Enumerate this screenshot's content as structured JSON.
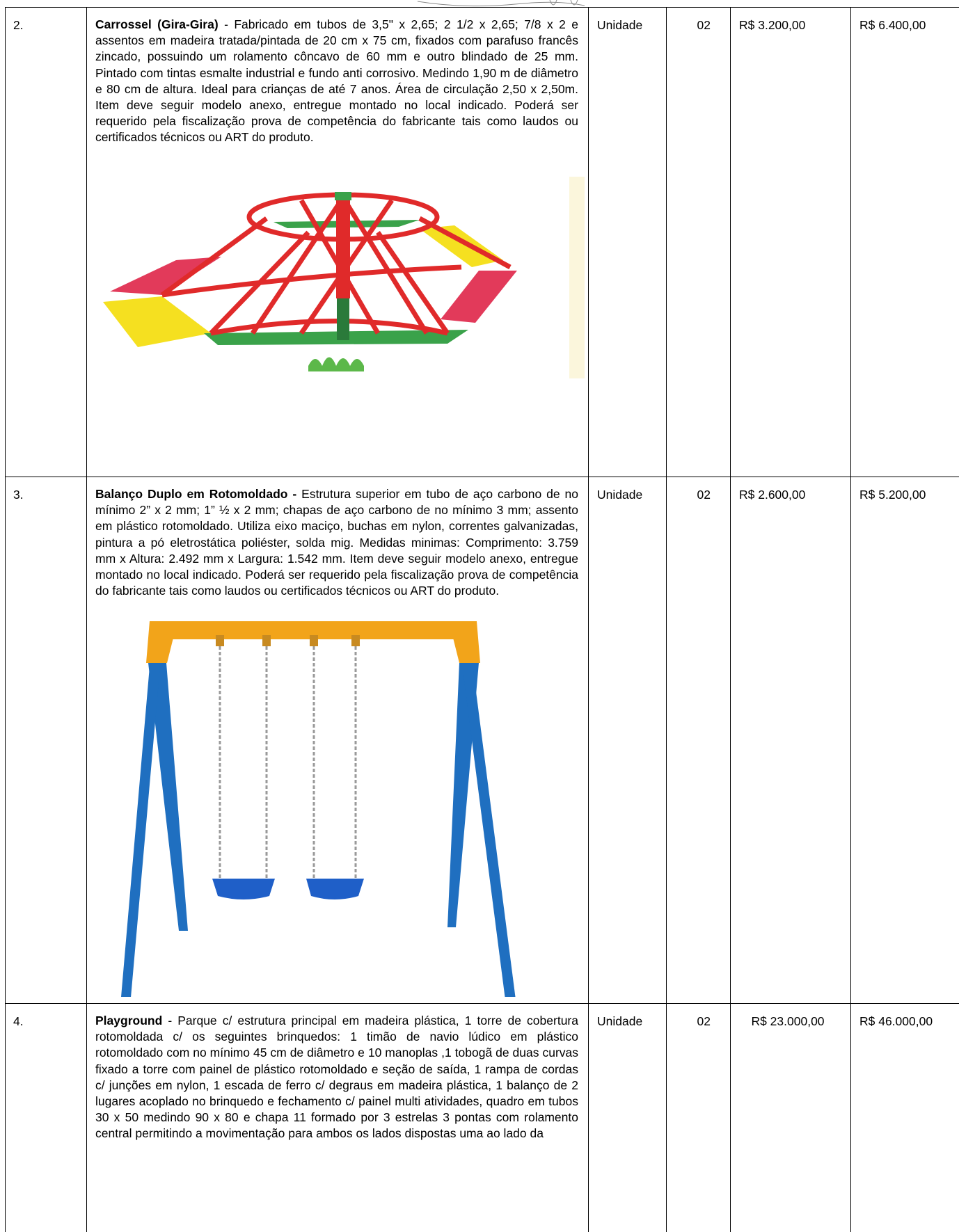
{
  "rows": [
    {
      "num": "2.",
      "title": "Carrossel (Gira-Gira)",
      "sep": " - ",
      "body": "Fabricado em tubos de 3,5\" x 2,65; 2 1/2 x 2,65; 7/8 x 2 e assentos em madeira tratada/pintada de 20 cm x 75 cm, fixados com parafuso francês zincado, possuindo um rolamento côncavo de 60 mm e outro blindado de 25 mm. Pintado com tintas esmalte industrial e fundo anti corrosivo. Medindo 1,90 m de diâmetro e 80 cm de altura. Ideal para crianças de até 7 anos. Área de circulação 2,50 x 2,50m.  Item deve seguir modelo anexo, entregue montado no local indicado. Poderá ser requerido pela fiscalização prova de competência do fabricante tais como laudos ou certificados técnicos ou ART do produto.",
      "unit": "Unidade",
      "qty": "02",
      "unit_price": "R$ 3.200,00",
      "total": "R$ 6.400,00",
      "image": "carousel-illustration"
    },
    {
      "num": "3.",
      "title": "Balanço Duplo em Rotomoldado -",
      "sep": " ",
      "body": "Estrutura superior em tubo de aço carbono de no mínimo 2” x 2 mm; 1” ½ x 2 mm; chapas de aço carbono de no mínimo 3 mm; assento em plástico rotomoldado. Utiliza eixo maciço, buchas em nylon, correntes galvanizadas, pintura a pó eletrostática poliéster, solda mig. Medidas minimas: Comprimento: 3.759 mm x Altura: 2.492 mm x Largura: 1.542 mm. Item deve seguir modelo anexo, entregue montado no local indicado. Poderá ser requerido pela fiscalização prova de competência do fabricante tais como laudos ou certificados técnicos ou ART do produto.",
      "unit": "Unidade",
      "qty": "02",
      "unit_price": "R$ 2.600,00",
      "total": "R$ 5.200,00",
      "image": "double-swing-illustration"
    },
    {
      "num": "4.",
      "title": "Playground",
      "sep": " - ",
      "body": "Parque c/ estrutura principal em madeira plástica, 1 torre de cobertura rotomoldada c/ os seguintes brinquedos: 1 timão de navio lúdico em plástico rotomoldado com no mínimo 45 cm de diâmetro e 10 manoplas ,1 tobogã de duas curvas fixado a torre com painel de plástico rotomoldado e seção de saída, 1 rampa de cordas c/ junções em nylon, 1  escada de ferro c/ degraus em madeira plástica, 1 balanço de 2 lugares acoplado no brinquedo e fechamento c/ painel multi atividades, quadro em tubos 30 x 50 medindo 90 x 80 e chapa 11 formado por 3 estrelas 3 pontas com rolamento central permitindo a movimentação para ambos os lados dispostas uma ao lado da",
      "unit": "Unidade",
      "qty": "02",
      "unit_price": "R$ 23.000,00",
      "total": "R$ 46.000,00"
    }
  ],
  "colors": {
    "red": "#e02a2a",
    "yellow": "#f5e020",
    "pink": "#e23a5a",
    "green": "#3aa24a",
    "blue": "#1f6fc0",
    "orange": "#f2a41a"
  }
}
